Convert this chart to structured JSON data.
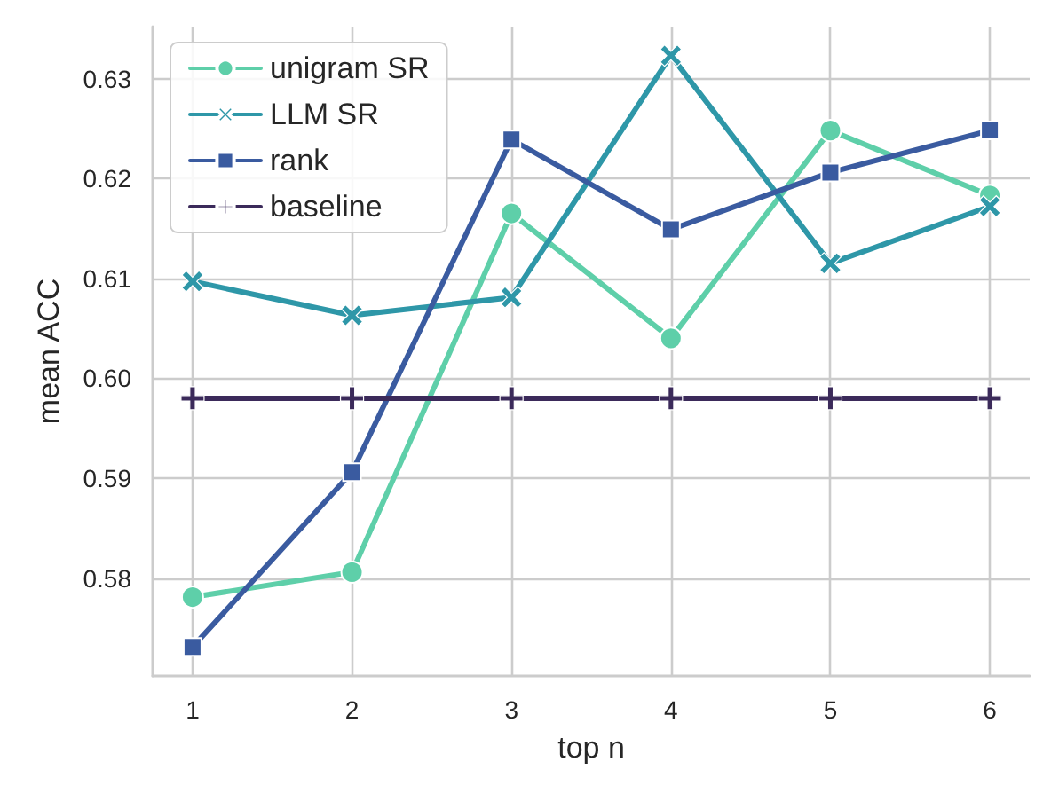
{
  "chart_data": {
    "type": "line",
    "xlabel": "top n",
    "ylabel": "mean ACC",
    "x": [
      1,
      2,
      3,
      4,
      5,
      6
    ],
    "xlim": [
      0.75,
      6.25
    ],
    "xticks": [
      1,
      2,
      3,
      4,
      5,
      6
    ],
    "ylim": [
      0.5702,
      0.6352
    ],
    "yticks": [
      0.58,
      0.59,
      {
        "value": 0.6,
        "label": "0.60"
      },
      0.61,
      0.62,
      0.63
    ],
    "grid": true,
    "legend": "top left",
    "line_style": "solid",
    "series": [
      {
        "name": "unigram SR",
        "color": "#5ecfa9",
        "marker": "circle",
        "values": [
          0.5781,
          0.5806,
          0.6165,
          0.604,
          0.6248,
          0.6183
        ]
      },
      {
        "name": "LLM SR",
        "color": "#2e97a8",
        "marker": "x",
        "values": [
          0.6097,
          0.6063,
          0.6081,
          0.6323,
          0.6115,
          0.6172
        ]
      },
      {
        "name": "rank",
        "color": "#3a5ba0",
        "marker": "square",
        "values": [
          0.5731,
          0.5906,
          0.6239,
          0.6149,
          0.6206,
          0.6248
        ]
      },
      {
        "name": "baseline",
        "color": "#3b2a5a",
        "marker": "plus",
        "values": [
          0.598,
          0.598,
          0.598,
          0.598,
          0.598,
          0.598
        ]
      }
    ]
  }
}
